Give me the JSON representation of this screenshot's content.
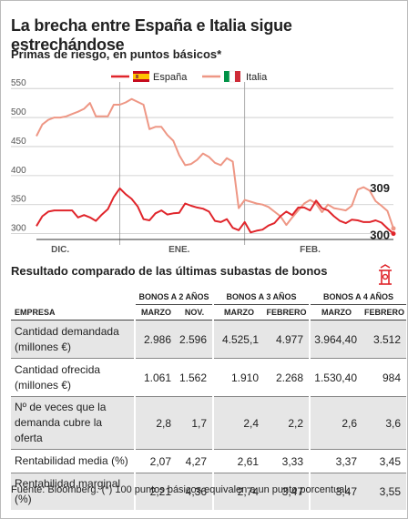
{
  "title": "La brecha entre España e Italia sigue estrechándose",
  "subtitle": "Primas de riesgo, en puntos básicos*",
  "legend": [
    {
      "label": "España",
      "color": "#e0252b"
    },
    {
      "label": "Italia",
      "color": "#ee9785"
    }
  ],
  "chart_data": {
    "type": "line",
    "title": "La brecha entre España e Italia sigue estrechándose",
    "ylabel": "Primas de riesgo, en puntos básicos*",
    "ylim": [
      290,
      555
    ],
    "yticks": [
      300,
      350,
      400,
      450,
      500,
      550
    ],
    "month_labels": [
      {
        "label": "DIC.",
        "x": 4
      },
      {
        "label": "ENE.",
        "x": 24
      },
      {
        "label": "FEB.",
        "x": 46
      }
    ],
    "month_dividers": [
      14,
      35
    ],
    "end_labels": [
      {
        "series": "Italia",
        "value": "309"
      },
      {
        "series": "España",
        "value": "300"
      }
    ],
    "grid": true,
    "legend_position": "top",
    "series": [
      {
        "name": "España",
        "color": "#e0252b",
        "values": [
          313,
          330,
          338,
          340,
          340,
          340,
          340,
          328,
          332,
          328,
          322,
          333,
          342,
          363,
          378,
          368,
          360,
          347,
          325,
          323,
          335,
          340,
          333,
          335,
          336,
          352,
          348,
          345,
          343,
          338,
          322,
          320,
          325,
          310,
          306,
          320,
          302,
          305,
          307,
          314,
          318,
          330,
          338,
          332,
          345,
          345,
          340,
          357,
          344,
          340,
          330,
          322,
          318,
          324,
          323,
          320,
          320,
          323,
          319,
          309,
          300
        ]
      },
      {
        "name": "Italia",
        "color": "#ee9785",
        "values": [
          468,
          488,
          496,
          500,
          500,
          502,
          506,
          510,
          515,
          525,
          502,
          502,
          502,
          522,
          522,
          526,
          532,
          527,
          522,
          480,
          484,
          484,
          470,
          460,
          435,
          418,
          420,
          427,
          438,
          432,
          422,
          418,
          430,
          424,
          344,
          358,
          355,
          352,
          350,
          346,
          338,
          330,
          315,
          328,
          340,
          352,
          358,
          352,
          337,
          350,
          344,
          342,
          340,
          348,
          376,
          380,
          374,
          356,
          348,
          339,
          309
        ]
      }
    ]
  },
  "table": {
    "section_title": "Resultado comparado de las últimas subastas de bonos",
    "groups": [
      "BONOS A 2 AÑOS",
      "BONOS A 3 AÑOS",
      "BONOS A 4 AÑOS"
    ],
    "row_header": "EMPRESA",
    "subheaders": [
      "MARZO",
      "NOV.",
      "MARZO",
      "FEBRERO",
      "MARZO",
      "FEBRERO"
    ],
    "rows": [
      {
        "label": "Cantidad demandada (millones €)",
        "values": [
          "2.986",
          "2.596",
          "4.525,1",
          "4.977",
          "3.964,40",
          "3.512"
        ]
      },
      {
        "label": "Cantidad ofrecida (millones €)",
        "values": [
          "1.061",
          "1.562",
          "1.910",
          "2.268",
          "1.530,40",
          "984"
        ]
      },
      {
        "label": "Nº de veces que la demanda cubre la oferta",
        "values": [
          "2,8",
          "1,7",
          "2,4",
          "2,2",
          "2,6",
          "3,6"
        ]
      },
      {
        "label": "Rentabilidad media (%)",
        "values": [
          "2,07",
          "4,27",
          "2,61",
          "3,33",
          "3,37",
          "3,45"
        ]
      },
      {
        "label": "Rentabilidad marginal (%)",
        "values": [
          "2,21",
          "4,36",
          "2,74",
          "3,47",
          "3,47",
          "3,55"
        ]
      }
    ]
  },
  "footer": "Fuente: Bloomberg. (*) 100 puntos básicos equivalen a un punto porcentual.",
  "logo_icon": "publication-crest-icon"
}
